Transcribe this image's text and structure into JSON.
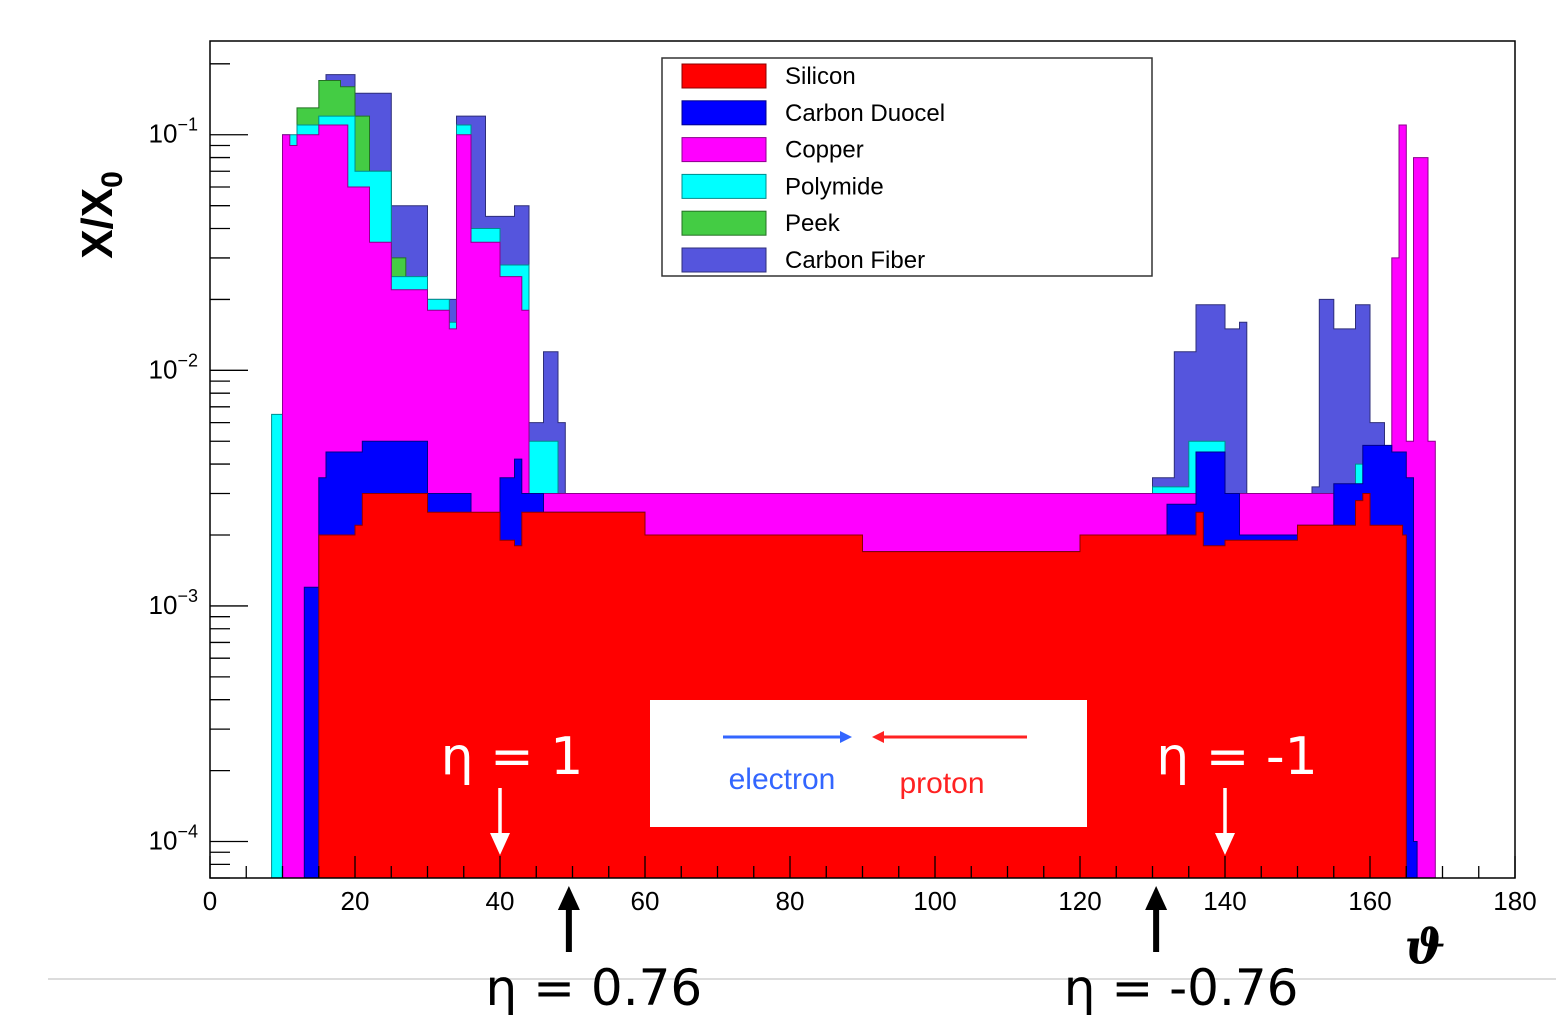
{
  "chart_data": {
    "type": "area",
    "stacked": true,
    "step": true,
    "xlabel": "ϑ",
    "ylabel": "X/X",
    "ylabel_sub": "0",
    "yscale": "log",
    "xlim": [
      0,
      180
    ],
    "ylim": [
      7e-05,
      0.25
    ],
    "xticks": [
      0,
      20,
      40,
      60,
      80,
      100,
      120,
      140,
      160,
      180
    ],
    "ytick_labels": [
      {
        "value": 0.1,
        "base": "10",
        "exp": "−1"
      },
      {
        "value": 0.01,
        "base": "10",
        "exp": "−2"
      },
      {
        "value": 0.001,
        "base": "10",
        "exp": "−3"
      },
      {
        "value": 0.0001,
        "base": "10",
        "exp": "−4"
      }
    ],
    "legend_position": "top-center",
    "series": [
      {
        "name": "Silicon",
        "color": "#ff0000",
        "points": [
          [
            8.5,
            0
          ],
          [
            15,
            0.002
          ],
          [
            20,
            0.0022
          ],
          [
            21,
            0.003
          ],
          [
            30,
            0.0025
          ],
          [
            40,
            0.0019
          ],
          [
            42,
            0.0018
          ],
          [
            43,
            0.0025
          ],
          [
            60,
            0.002
          ],
          [
            90,
            0.0017
          ],
          [
            120,
            0.002
          ],
          [
            136,
            0.0025
          ],
          [
            137,
            0.0018
          ],
          [
            140,
            0.0019
          ],
          [
            150,
            0.0022
          ],
          [
            158,
            0.0028
          ],
          [
            159,
            0.003
          ],
          [
            160,
            0.0022
          ],
          [
            164.5,
            0.002
          ],
          [
            165,
            0
          ]
        ]
      },
      {
        "name": "Carbon Duocel",
        "color": "#0000ff",
        "points": [
          [
            13,
            0.0012
          ],
          [
            15,
            0.0035
          ],
          [
            16,
            0.0045
          ],
          [
            21,
            0.005
          ],
          [
            30,
            0.003
          ],
          [
            36,
            0.002
          ],
          [
            40,
            0.0035
          ],
          [
            42,
            0.0042
          ],
          [
            43,
            0.003
          ],
          [
            46,
            0.0025
          ],
          [
            60,
            0.002
          ],
          [
            90,
            0.0017
          ],
          [
            120,
            0.002
          ],
          [
            132,
            0.0027
          ],
          [
            136,
            0.0045
          ],
          [
            140,
            0.003
          ],
          [
            142,
            0.002
          ],
          [
            150,
            0.0022
          ],
          [
            155,
            0.0033
          ],
          [
            159,
            0.0048
          ],
          [
            163,
            0.0045
          ],
          [
            165,
            0.0035
          ],
          [
            166,
            0.0001
          ],
          [
            166.5,
            0
          ]
        ]
      },
      {
        "name": "Copper",
        "color": "#ff00ff",
        "points": [
          [
            10,
            0.1
          ],
          [
            11,
            0.09
          ],
          [
            12,
            0.1
          ],
          [
            15,
            0.11
          ],
          [
            19,
            0.06
          ],
          [
            22,
            0.035
          ],
          [
            25,
            0.022
          ],
          [
            30,
            0.018
          ],
          [
            33,
            0.015
          ],
          [
            34,
            0.1
          ],
          [
            36,
            0.035
          ],
          [
            40,
            0.025
          ],
          [
            43,
            0.018
          ],
          [
            44,
            0.003
          ],
          [
            160,
            0.0028
          ],
          [
            163,
            0.03
          ],
          [
            164,
            0.11
          ],
          [
            165,
            0.005
          ],
          [
            166,
            0.08
          ],
          [
            167,
            0.08
          ],
          [
            168,
            0.005
          ],
          [
            169,
            0
          ]
        ]
      },
      {
        "name": "Polymide",
        "color": "#00ffff",
        "points": [
          [
            8.5,
            0.0065
          ],
          [
            10,
            0.1
          ],
          [
            12,
            0.11
          ],
          [
            15,
            0.12
          ],
          [
            20,
            0.07
          ],
          [
            25,
            0.025
          ],
          [
            30,
            0.02
          ],
          [
            33,
            0.016
          ],
          [
            34,
            0.11
          ],
          [
            36,
            0.04
          ],
          [
            40,
            0.028
          ],
          [
            44,
            0.005
          ],
          [
            48,
            0.003
          ],
          [
            60,
            0.0028
          ],
          [
            90,
            0.0024
          ],
          [
            120,
            0.0028
          ],
          [
            130,
            0.0032
          ],
          [
            135,
            0.005
          ],
          [
            140,
            0.003
          ],
          [
            142,
            0.0018
          ],
          [
            150,
            0.0022
          ],
          [
            158,
            0.004
          ],
          [
            160,
            0.0045
          ],
          [
            162,
            0.0032
          ],
          [
            165,
            0.0032
          ],
          [
            166,
            0.0001
          ]
        ]
      },
      {
        "name": "Peek",
        "color": "#44cc44",
        "points": [
          [
            12,
            0.13
          ],
          [
            15,
            0.17
          ],
          [
            18,
            0.16
          ],
          [
            20,
            0.12
          ],
          [
            22,
            0.07
          ],
          [
            25,
            0.03
          ],
          [
            27,
            0.02
          ]
        ]
      },
      {
        "name": "Carbon Fiber",
        "color": "#5555dd",
        "points": [
          [
            16,
            0.18
          ],
          [
            20,
            0.15
          ],
          [
            25,
            0.05
          ],
          [
            30,
            0.02
          ],
          [
            34,
            0.12
          ],
          [
            38,
            0.045
          ],
          [
            42,
            0.05
          ],
          [
            44,
            0.006
          ],
          [
            46,
            0.012
          ],
          [
            48,
            0.006
          ],
          [
            49,
            0.003
          ],
          [
            130,
            0.0035
          ],
          [
            133,
            0.012
          ],
          [
            136,
            0.019
          ],
          [
            140,
            0.015
          ],
          [
            142,
            0.016
          ],
          [
            143,
            0.001
          ],
          [
            152,
            0.0032
          ],
          [
            153,
            0.02
          ],
          [
            155,
            0.015
          ],
          [
            158,
            0.019
          ],
          [
            160,
            0.006
          ],
          [
            162,
            0.004
          ]
        ]
      }
    ],
    "annotations": {
      "eta_pos1": "η = 1",
      "eta_neg1": "η = -1",
      "eta_pos076": "η = 0.76",
      "eta_neg076": "η = -0.76",
      "electron": "electron",
      "proton": "proton"
    },
    "annotation_positions": {
      "eta_pos1_x": 40,
      "eta_neg1_x": 140,
      "eta_pos076_x": 49.5,
      "eta_neg076_x": 130.5
    }
  }
}
